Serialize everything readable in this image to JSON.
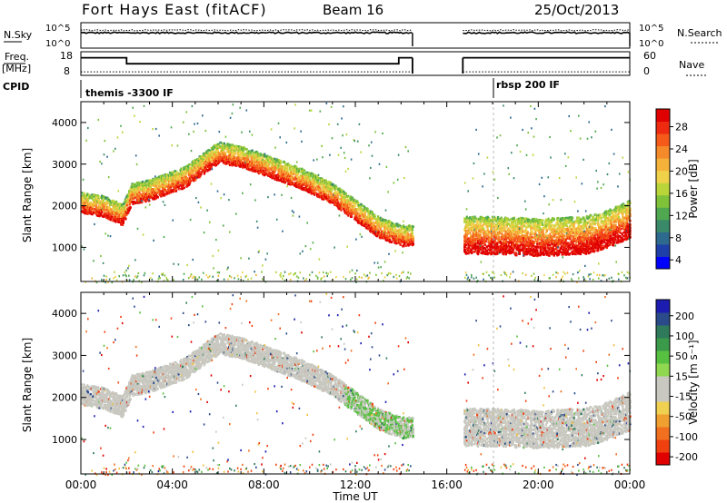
{
  "header": {
    "radar": "Fort Hays East (fitACF)",
    "beam": "Beam 16",
    "date": "25/Oct/2013"
  },
  "panels": {
    "nsky": {
      "left_label": "N.Sky",
      "left_ticks": [
        "10^5",
        "10^0"
      ],
      "right_ticks": [
        "10^5",
        "10^0"
      ],
      "right_label": "N.Search"
    },
    "freq": {
      "left_label_1": "Freq.",
      "left_label_2": "[MHz]",
      "left_ticks": [
        "18",
        "8"
      ],
      "right_ticks": [
        "60",
        "0"
      ],
      "right_label": "Nave"
    },
    "cpid": {
      "label": "CPID",
      "programs": [
        {
          "text": "themis -3300 IF",
          "start_hour": 0.0
        },
        {
          "text": "rbsp 200 IF",
          "start_hour": 18.0
        }
      ]
    }
  },
  "time_axis": {
    "title": "Time UT",
    "tick_labels": [
      "00:00",
      "04:00",
      "08:00",
      "12:00",
      "16:00",
      "20:00",
      "00:00"
    ],
    "range_hours": [
      0,
      24
    ],
    "data_gap_hours": [
      14.5,
      16.7
    ]
  },
  "range_axis": {
    "title": "Slant Range [km]",
    "tick_labels": [
      "1000",
      "2000",
      "3000",
      "4000"
    ],
    "range_km": [
      180,
      4500
    ]
  },
  "colorbars": {
    "power": {
      "title": "Power [dB]",
      "tick_labels": [
        "28",
        "24",
        "20",
        "16",
        "12",
        "8",
        "4"
      ],
      "colors": [
        "#0000ff",
        "#1f3fa8",
        "#2e6a8e",
        "#3a8a6a",
        "#4fa84f",
        "#7fc23a",
        "#b9d53a",
        "#f0d24a",
        "#f5b23a",
        "#f58a2a",
        "#f55a1a",
        "#ee2a10",
        "#e00000"
      ]
    },
    "velocity": {
      "title": "Velocity [m s⁻¹]",
      "tick_labels": [
        "200",
        "100",
        "50",
        "15",
        "-15",
        "-50",
        "-100",
        "-200"
      ],
      "colors": [
        "#1c1cb0",
        "#2a4a8a",
        "#2f7a5a",
        "#3a9a4a",
        "#58c040",
        "#90d850",
        "#c8c8c0",
        "#c8c8c0",
        "#f0d050",
        "#f0a030",
        "#f07020",
        "#f04010",
        "#e00000"
      ]
    }
  },
  "chart_data": {
    "type": "heatmap",
    "title": "Fort Hays East (fitACF) Beam 16 25/Oct/2013",
    "xlabel": "Time UT",
    "ylabel": "Slant Range [km]",
    "xlim_hours": [
      0,
      24
    ],
    "ylim_km": [
      180,
      4500
    ],
    "freq_mhz_segments": [
      {
        "t0": 0.0,
        "t1": 2.0,
        "value": 15
      },
      {
        "t0": 2.0,
        "t1": 13.9,
        "value": 12
      },
      {
        "t0": 13.9,
        "t1": 14.5,
        "value": 15
      },
      {
        "t0": 16.7,
        "t1": 24.0,
        "value": 15
      }
    ],
    "nave_approx": 5,
    "nsky_log_approx": 3.1,
    "nsearch_log_approx": 3.7,
    "power_scale_db": [
      0,
      30
    ],
    "velocity_scale_ms": [
      -250,
      250
    ],
    "main_echo_band": [
      {
        "t": 0.0,
        "range_km": 2000
      },
      {
        "t": 1.0,
        "range_km": 1900
      },
      {
        "t": 1.8,
        "range_km": 1700
      },
      {
        "t": 2.2,
        "range_km": 2200
      },
      {
        "t": 3.0,
        "range_km": 2300
      },
      {
        "t": 4.5,
        "range_km": 2600
      },
      {
        "t": 6.0,
        "range_km": 3200
      },
      {
        "t": 7.0,
        "range_km": 3100
      },
      {
        "t": 8.0,
        "range_km": 2900
      },
      {
        "t": 9.5,
        "range_km": 2600
      },
      {
        "t": 11.0,
        "range_km": 2200
      },
      {
        "t": 12.0,
        "range_km": 1800
      },
      {
        "t": 13.0,
        "range_km": 1400
      },
      {
        "t": 14.0,
        "range_km": 1200
      },
      {
        "t": 14.5,
        "range_km": 1200
      },
      {
        "t": 16.7,
        "range_km": 1150
      },
      {
        "t": 18.0,
        "range_km": 1150
      },
      {
        "t": 20.0,
        "range_km": 1100
      },
      {
        "t": 22.0,
        "range_km": 1150
      },
      {
        "t": 23.0,
        "range_km": 1300
      },
      {
        "t": 24.0,
        "range_km": 1550
      }
    ]
  }
}
